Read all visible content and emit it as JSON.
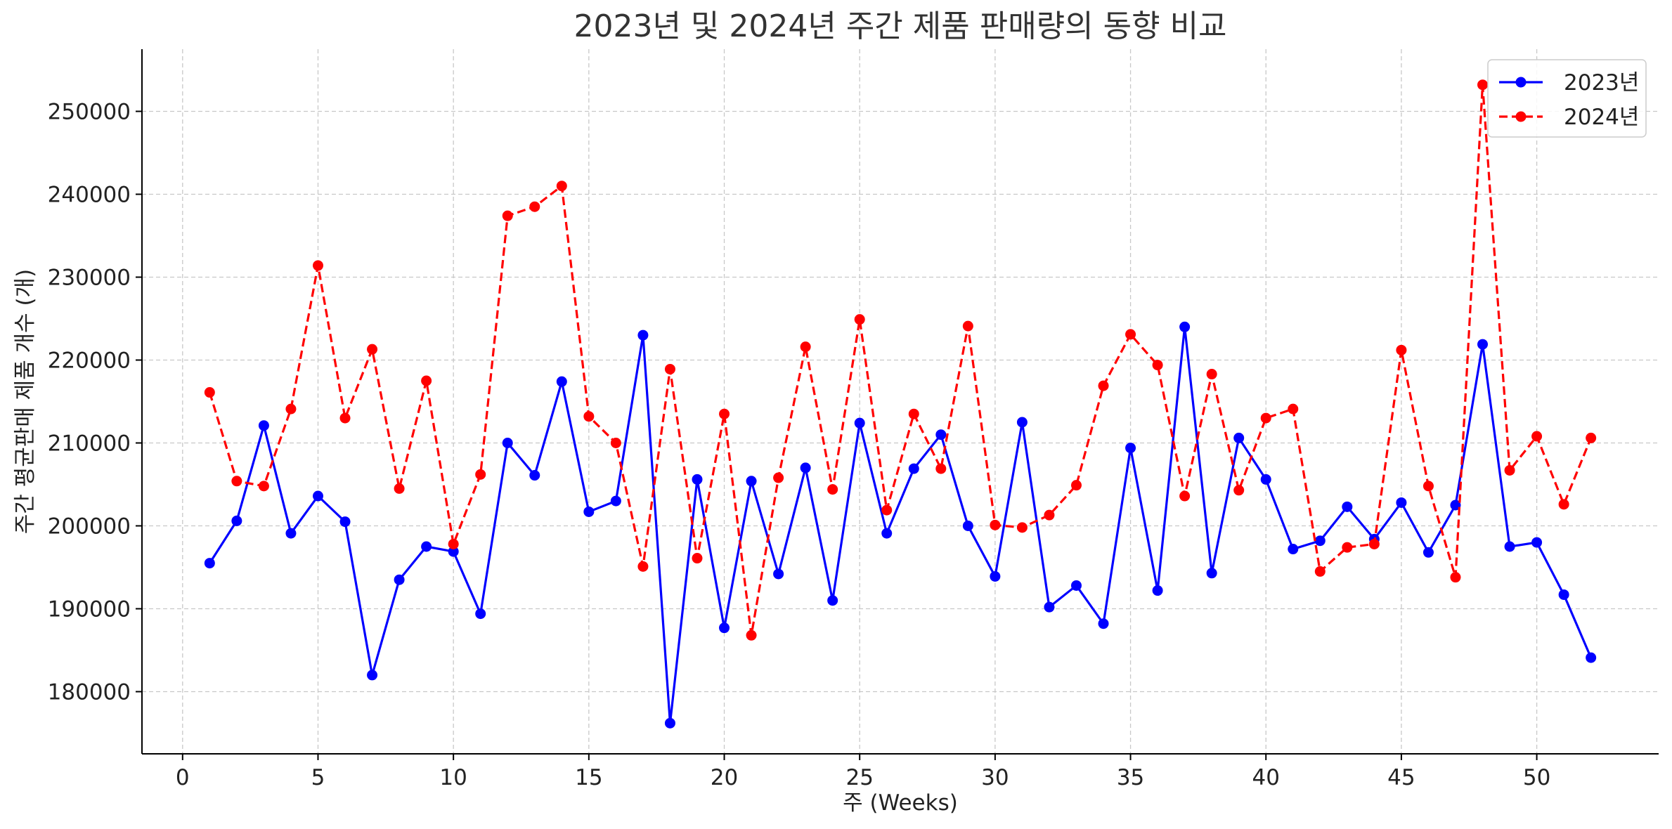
{
  "chart_data": {
    "type": "line",
    "title": "2023년 및 2024년 주간 제품 판매량의 동향 비교",
    "xlabel": "주 (Weeks)",
    "ylabel": "주간 평균판매 제품 개수 (개)",
    "x": [
      1,
      2,
      3,
      4,
      5,
      6,
      7,
      8,
      9,
      10,
      11,
      12,
      13,
      14,
      15,
      16,
      17,
      18,
      19,
      20,
      21,
      22,
      23,
      24,
      25,
      26,
      27,
      28,
      29,
      30,
      31,
      32,
      33,
      34,
      35,
      36,
      37,
      38,
      39,
      40,
      41,
      42,
      43,
      44,
      45,
      46,
      47,
      48,
      49,
      50,
      51,
      52
    ],
    "xlim": [
      -1.5,
      54.5
    ],
    "ylim": [
      172500,
      257500
    ],
    "xticks": [
      0,
      5,
      10,
      15,
      20,
      25,
      30,
      35,
      40,
      45,
      50
    ],
    "yticks": [
      180000,
      190000,
      200000,
      210000,
      220000,
      230000,
      240000,
      250000
    ],
    "grid": true,
    "legend_position": "top-right",
    "series": [
      {
        "name": "2023년",
        "color": "#0000ff",
        "line_style": "solid",
        "marker": "circle",
        "values": [
          195500,
          200600,
          212100,
          199100,
          203600,
          200500,
          182000,
          193500,
          197500,
          196900,
          189400,
          210000,
          206100,
          217400,
          201700,
          203000,
          223000,
          176200,
          205600,
          187700,
          205400,
          194200,
          207000,
          191000,
          212400,
          199100,
          206900,
          211000,
          200000,
          193900,
          212500,
          190200,
          192800,
          188200,
          209400,
          192200,
          224000,
          194300,
          210600,
          205600,
          197200,
          198200,
          202300,
          198400,
          202800,
          196800,
          202500,
          221900,
          197500,
          198000,
          191700,
          184100
        ]
      },
      {
        "name": "2024년",
        "color": "#ff0000",
        "line_style": "dashed",
        "marker": "circle",
        "values": [
          216100,
          205400,
          204800,
          214100,
          231400,
          213000,
          221300,
          204500,
          217500,
          197800,
          206200,
          237400,
          238500,
          241000,
          213200,
          210000,
          195100,
          218900,
          196100,
          213500,
          186800,
          205800,
          221600,
          204400,
          224900,
          201900,
          213500,
          206900,
          224100,
          200100,
          199800,
          201300,
          204900,
          216900,
          223100,
          219400,
          203600,
          218300,
          204300,
          213000,
          214100,
          194500,
          197400,
          197800,
          221200,
          204800,
          193800,
          253200,
          206700,
          210800,
          202600,
          210600
        ]
      }
    ]
  }
}
